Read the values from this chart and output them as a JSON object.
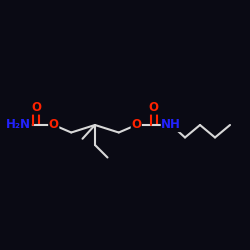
{
  "background_color": "#0a0a14",
  "bond_color": "#d8d8d8",
  "oxygen_color": "#ff2200",
  "nitrogen_color": "#2222ff",
  "line_width": 1.5,
  "font_size": 8.5,
  "figsize": [
    2.5,
    2.5
  ],
  "dpi": 100,
  "xlim": [
    0.0,
    1.0
  ],
  "ylim": [
    0.15,
    0.85
  ]
}
